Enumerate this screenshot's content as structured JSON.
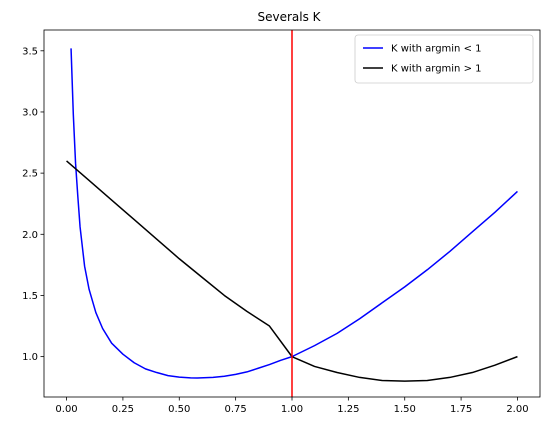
{
  "chart_data": {
    "type": "line",
    "title": "Severals K",
    "xlabel": "",
    "ylabel": "",
    "xlim": [
      -0.1,
      2.1
    ],
    "ylim": [
      0.67,
      3.67
    ],
    "x_ticks": [
      0.0,
      0.25,
      0.5,
      0.75,
      1.0,
      1.25,
      1.5,
      1.75,
      2.0
    ],
    "x_tick_labels": [
      "0.00",
      "0.25",
      "0.50",
      "0.75",
      "1.00",
      "1.25",
      "1.50",
      "1.75",
      "2.00"
    ],
    "y_ticks": [
      1.0,
      1.5,
      2.0,
      2.5,
      3.0,
      3.5
    ],
    "y_tick_labels": [
      "1.0",
      "1.5",
      "2.0",
      "2.5",
      "3.0",
      "3.5"
    ],
    "grid": false,
    "legend_position": "top-right",
    "vline": {
      "x": 1.0,
      "color": "#ff0000"
    },
    "series": [
      {
        "name": "K with argmin < 1",
        "color": "#0000ff",
        "points": [
          [
            0.02,
            3.52
          ],
          [
            0.03,
            2.98
          ],
          [
            0.04,
            2.58
          ],
          [
            0.05,
            2.31
          ],
          [
            0.06,
            2.06
          ],
          [
            0.08,
            1.74
          ],
          [
            0.1,
            1.55
          ],
          [
            0.13,
            1.36
          ],
          [
            0.16,
            1.23
          ],
          [
            0.2,
            1.11
          ],
          [
            0.25,
            1.02
          ],
          [
            0.3,
            0.95
          ],
          [
            0.35,
            0.9
          ],
          [
            0.4,
            0.87
          ],
          [
            0.45,
            0.845
          ],
          [
            0.5,
            0.832
          ],
          [
            0.55,
            0.826
          ],
          [
            0.58,
            0.825
          ],
          [
            0.65,
            0.83
          ],
          [
            0.7,
            0.84
          ],
          [
            0.75,
            0.855
          ],
          [
            0.8,
            0.875
          ],
          [
            0.85,
            0.905
          ],
          [
            0.9,
            0.935
          ],
          [
            0.95,
            0.97
          ],
          [
            1.0,
            1.0
          ],
          [
            1.1,
            1.09
          ],
          [
            1.2,
            1.19
          ],
          [
            1.3,
            1.31
          ],
          [
            1.4,
            1.44
          ],
          [
            1.5,
            1.57
          ],
          [
            1.6,
            1.71
          ],
          [
            1.7,
            1.86
          ],
          [
            1.8,
            2.02
          ],
          [
            1.9,
            2.18
          ],
          [
            2.0,
            2.35
          ]
        ]
      },
      {
        "name": "K with argmin > 1",
        "color": "#000000",
        "points": [
          [
            0.0,
            2.6
          ],
          [
            0.1,
            2.44
          ],
          [
            0.2,
            2.28
          ],
          [
            0.3,
            2.12
          ],
          [
            0.4,
            1.96
          ],
          [
            0.5,
            1.8
          ],
          [
            0.6,
            1.65
          ],
          [
            0.7,
            1.5
          ],
          [
            0.8,
            1.37
          ],
          [
            0.9,
            1.25
          ],
          [
            1.0,
            1.0
          ],
          [
            1.0,
            1.0
          ],
          [
            1.1,
            0.92
          ],
          [
            1.2,
            0.87
          ],
          [
            1.3,
            0.83
          ],
          [
            1.4,
            0.805
          ],
          [
            1.5,
            0.8
          ],
          [
            1.6,
            0.805
          ],
          [
            1.7,
            0.83
          ],
          [
            1.8,
            0.87
          ],
          [
            1.9,
            0.93
          ],
          [
            2.0,
            1.0
          ]
        ]
      }
    ]
  }
}
